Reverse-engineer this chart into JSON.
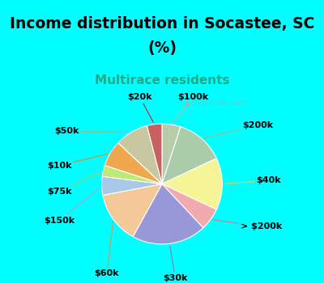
{
  "title_line1": "Income distribution in Socastee, SC",
  "title_line2": "(%)",
  "subtitle": "Multirace residents",
  "bg_cyan": "#00FFFF",
  "bg_chart": "#e0f0e8",
  "labels": [
    "$100k",
    "$200k",
    "$40k",
    "> $200k",
    "$30k",
    "$60k",
    "$150k",
    "$75k",
    "$10k",
    "$50k",
    "$20k"
  ],
  "values": [
    5,
    13,
    14,
    6,
    20,
    14,
    5,
    3,
    7,
    9,
    4
  ],
  "colors": [
    "#b8ccaa",
    "#aacca8",
    "#f5f598",
    "#f0aab0",
    "#9898d8",
    "#f5c898",
    "#a8c8e8",
    "#c0e878",
    "#f0a850",
    "#c8c8a0",
    "#c86060"
  ],
  "line_colors": [
    "#b0c090",
    "#90c090",
    "#d0d060",
    "#d08090",
    "#8080c0",
    "#c0a060",
    "#90b0d0",
    "#a0d060",
    "#d09040",
    "#b0b080",
    "#a04040"
  ],
  "watermark": "City-Data.com",
  "title_fontsize": 13.5,
  "subtitle_fontsize": 11,
  "subtitle_color": "#22aa88",
  "label_fontsize": 8
}
